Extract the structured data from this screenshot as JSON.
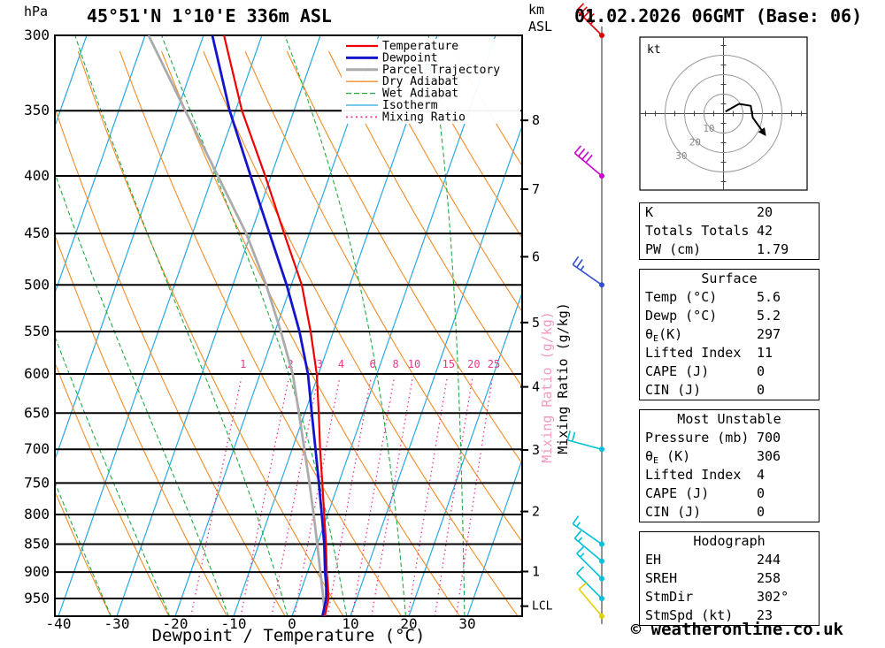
{
  "header": {
    "station": "45°51'N 1°10'E 336m ASL",
    "datetime": "01.02.2026 06GMT (Base: 06)"
  },
  "axes": {
    "pressure_unit": "hPa",
    "km_unit_line1": "km",
    "km_unit_line2": "ASL",
    "x_axis_title": "Dewpoint / Temperature (°C)",
    "mixing_axis_label": "Mixing Ratio (g/kg)",
    "pressure_ticks": [
      300,
      350,
      400,
      450,
      500,
      550,
      600,
      650,
      700,
      750,
      800,
      850,
      900,
      950
    ],
    "temp_ticks": [
      -40,
      -30,
      -20,
      -10,
      0,
      10,
      20,
      30
    ],
    "km_ticks": [
      {
        "km": 1,
        "p": 899
      },
      {
        "km": 2,
        "p": 795
      },
      {
        "km": 3,
        "p": 701
      },
      {
        "km": 4,
        "p": 616
      },
      {
        "km": 5,
        "p": 540
      },
      {
        "km": 6,
        "p": 472
      },
      {
        "km": 7,
        "p": 411
      },
      {
        "km": 8,
        "p": 357
      }
    ],
    "lcl": {
      "label": "LCL",
      "p": 965
    }
  },
  "legend": [
    {
      "label": "Temperature",
      "color": "#f00000",
      "width": 2.2
    },
    {
      "label": "Dewpoint",
      "color": "#1414cc",
      "width": 3
    },
    {
      "label": "Parcel Trajectory",
      "color": "#ababab",
      "width": 3
    },
    {
      "label": "Dry Adiabat",
      "color": "#f28c28",
      "width": 1.3
    },
    {
      "label": "Wet Adiabat",
      "color": "#22aa44",
      "width": 1.3,
      "dash": "6,3"
    },
    {
      "label": "Isotherm",
      "color": "#29a8e0",
      "width": 1.3
    },
    {
      "label": "Mixing Ratio",
      "color": "#e8388c",
      "width": 1.8,
      "dash": "2,3.5"
    }
  ],
  "colors": {
    "temperature": "#f00000",
    "dewpoint": "#1414cc",
    "parcel": "#ababab",
    "dry_adiabat": "#f28c28",
    "wet_adiabat": "#22aa44",
    "isotherm": "#29a8e0",
    "mixing_ratio": "#e8388c",
    "mixing_axis_pink": "#f49ac2",
    "barb_line": "#666666",
    "grid": "#000000"
  },
  "chart_data": {
    "type": "skewt-log-p",
    "pressure_range_hpa": [
      300,
      985
    ],
    "temp_axis_range_c": [
      -42,
      40
    ],
    "temperature_c": [
      [
        985,
        5.6
      ],
      [
        950,
        5.2
      ],
      [
        925,
        4.3
      ],
      [
        900,
        3.3
      ],
      [
        850,
        1.5
      ],
      [
        800,
        -0.6
      ],
      [
        750,
        -2.8
      ],
      [
        700,
        -5.2
      ],
      [
        650,
        -7.6
      ],
      [
        600,
        -10.3
      ],
      [
        550,
        -13.9
      ],
      [
        500,
        -18.2
      ],
      [
        450,
        -24.3
      ],
      [
        400,
        -31.0
      ],
      [
        350,
        -38.9
      ],
      [
        300,
        -46.5
      ]
    ],
    "dewpoint_c": [
      [
        985,
        5.2
      ],
      [
        950,
        4.8
      ],
      [
        925,
        4.0
      ],
      [
        900,
        3.0
      ],
      [
        850,
        1.2
      ],
      [
        800,
        -1.0
      ],
      [
        750,
        -3.4
      ],
      [
        700,
        -6.0
      ],
      [
        650,
        -8.8
      ],
      [
        600,
        -11.8
      ],
      [
        550,
        -15.8
      ],
      [
        500,
        -20.8
      ],
      [
        450,
        -26.8
      ],
      [
        400,
        -33.5
      ],
      [
        350,
        -41.0
      ],
      [
        300,
        -48.5
      ]
    ],
    "parcel_c": [
      [
        985,
        5.6
      ],
      [
        950,
        4.3
      ],
      [
        900,
        2.2
      ],
      [
        850,
        0.0
      ],
      [
        800,
        -2.4
      ],
      [
        750,
        -5.0
      ],
      [
        700,
        -7.9
      ],
      [
        650,
        -11.0
      ],
      [
        600,
        -14.4
      ],
      [
        550,
        -19.0
      ],
      [
        500,
        -24.3
      ],
      [
        450,
        -30.8
      ],
      [
        400,
        -39.1
      ],
      [
        350,
        -48.6
      ],
      [
        300,
        -59.4
      ]
    ],
    "mixing_ratio_lines_gkg": [
      1,
      2,
      3,
      4,
      6,
      8,
      10,
      15,
      20,
      25
    ],
    "isotherm_step_c": 10,
    "wind_barbs": [
      {
        "p": 300,
        "dir": 315,
        "spd": 45,
        "color": "#e00000"
      },
      {
        "p": 400,
        "dir": 310,
        "spd": 40,
        "color": "#cc00cc"
      },
      {
        "p": 500,
        "dir": 305,
        "spd": 25,
        "color": "#3050d0"
      },
      {
        "p": 700,
        "dir": 285,
        "spd": 20,
        "color": "#00c0d8"
      },
      {
        "p": 850,
        "dir": 305,
        "spd": 15,
        "color": "#00c0d8"
      },
      {
        "p": 880,
        "dir": 310,
        "spd": 15,
        "color": "#00c0d8"
      },
      {
        "p": 912,
        "dir": 315,
        "spd": 15,
        "color": "#00c0d8"
      },
      {
        "p": 950,
        "dir": 315,
        "spd": 10,
        "color": "#00c0d8"
      },
      {
        "p": 985,
        "dir": 320,
        "spd": 10,
        "color": "#e0d000"
      }
    ],
    "hodograph": {
      "unit": "kt",
      "rings_kt": [
        10,
        20,
        30
      ],
      "trace_uv_kt": [
        [
          1,
          1
        ],
        [
          8,
          5
        ],
        [
          14,
          4
        ],
        [
          15,
          -2
        ],
        [
          20,
          -9
        ]
      ]
    }
  },
  "tables": [
    {
      "rows": [
        [
          "K",
          "20"
        ],
        [
          "Totals Totals",
          "42"
        ],
        [
          "PW (cm)",
          "1.79"
        ]
      ]
    },
    {
      "header": "Surface",
      "rows": [
        [
          "Temp (°C)",
          "5.6"
        ],
        [
          "Dewp (°C)",
          "5.2"
        ],
        [
          "θE(K)",
          "297"
        ],
        [
          "Lifted Index",
          "11"
        ],
        [
          "CAPE (J)",
          "0"
        ],
        [
          "CIN (J)",
          "0"
        ]
      ]
    },
    {
      "header": "Most Unstable",
      "rows": [
        [
          "Pressure (mb)",
          "700"
        ],
        [
          "θE (K)",
          "306"
        ],
        [
          "Lifted Index",
          "4"
        ],
        [
          "CAPE (J)",
          "0"
        ],
        [
          "CIN (J)",
          "0"
        ]
      ]
    },
    {
      "header": "Hodograph",
      "rows": [
        [
          "EH",
          "244"
        ],
        [
          "SREH",
          "258"
        ],
        [
          "StmDir",
          "302°"
        ],
        [
          "StmSpd (kt)",
          "23"
        ]
      ]
    }
  ],
  "footer": {
    "copyright": "© weatheronline.co.uk"
  }
}
